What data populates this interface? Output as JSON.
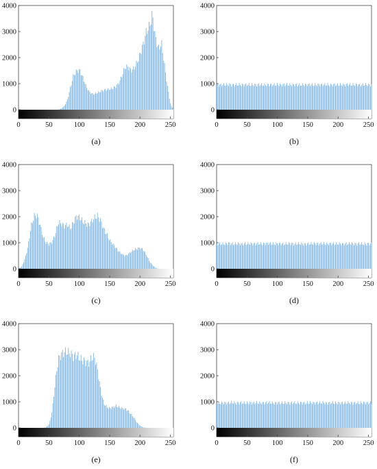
{
  "chart_data": [
    {
      "type": "bar",
      "caption": "(a)",
      "color": "#7fb6e2",
      "xlim": [
        0,
        255
      ],
      "ylim": [
        0,
        4000
      ],
      "xticks": [
        0,
        50,
        100,
        150,
        200,
        250
      ],
      "yticks": [
        0,
        1000,
        2000,
        3000,
        4000
      ],
      "x": [
        0,
        5,
        10,
        15,
        20,
        25,
        30,
        35,
        40,
        45,
        50,
        55,
        60,
        65,
        70,
        75,
        80,
        85,
        90,
        95,
        100,
        105,
        110,
        115,
        120,
        125,
        130,
        135,
        140,
        145,
        150,
        155,
        160,
        165,
        170,
        175,
        180,
        185,
        190,
        195,
        200,
        205,
        210,
        215,
        220,
        225,
        230,
        235,
        240,
        245,
        250,
        255
      ],
      "values": [
        0,
        0,
        0,
        0,
        0,
        0,
        0,
        0,
        0,
        0,
        0,
        0,
        0,
        0,
        50,
        150,
        400,
        900,
        1400,
        1580,
        1620,
        1350,
        1000,
        760,
        650,
        650,
        700,
        760,
        800,
        820,
        840,
        880,
        950,
        1100,
        1400,
        1750,
        1750,
        1600,
        1700,
        1950,
        2300,
        2700,
        3200,
        3400,
        3900,
        2900,
        2500,
        2700,
        1800,
        900,
        200,
        0
      ]
    },
    {
      "type": "bar",
      "caption": "(b)",
      "color": "#7fb6e2",
      "xlim": [
        0,
        255
      ],
      "ylim": [
        0,
        4000
      ],
      "xticks": [
        0,
        50,
        100,
        150,
        200,
        250
      ],
      "yticks": [
        0,
        1000,
        2000,
        3000,
        4000
      ],
      "x": [
        0,
        5,
        10,
        15,
        20,
        25,
        30,
        35,
        40,
        45,
        50,
        55,
        60,
        65,
        70,
        75,
        80,
        85,
        90,
        95,
        100,
        105,
        110,
        115,
        120,
        125,
        130,
        135,
        140,
        145,
        150,
        155,
        160,
        165,
        170,
        175,
        180,
        185,
        190,
        195,
        200,
        205,
        210,
        215,
        220,
        225,
        230,
        235,
        240,
        245,
        250,
        255
      ],
      "values": [
        1020,
        1010,
        1025,
        1015,
        1030,
        1010,
        1020,
        1025,
        1015,
        1020,
        1030,
        1010,
        1020,
        1015,
        1025,
        1020,
        1010,
        1030,
        1020,
        1015,
        1025,
        1010,
        1020,
        1030,
        1015,
        1020,
        1025,
        1010,
        1020,
        1015,
        1030,
        1020,
        1010,
        1025,
        1015,
        1020,
        1030,
        1010,
        1020,
        1025,
        1015,
        1020,
        1010,
        1030,
        1020,
        1015,
        1025,
        1010,
        1020,
        1030,
        1015,
        1020
      ]
    },
    {
      "type": "bar",
      "caption": "(c)",
      "color": "#7fb6e2",
      "xlim": [
        0,
        255
      ],
      "ylim": [
        0,
        4000
      ],
      "xticks": [
        0,
        50,
        100,
        150,
        200,
        250
      ],
      "yticks": [
        0,
        1000,
        2000,
        3000,
        4000
      ],
      "x": [
        0,
        5,
        10,
        15,
        20,
        25,
        30,
        35,
        40,
        45,
        50,
        55,
        60,
        65,
        70,
        75,
        80,
        85,
        90,
        95,
        100,
        105,
        110,
        115,
        120,
        125,
        130,
        135,
        140,
        145,
        150,
        155,
        160,
        165,
        170,
        175,
        180,
        185,
        190,
        195,
        200,
        205,
        210,
        215,
        220,
        225,
        230,
        235,
        240,
        245,
        250,
        255
      ],
      "values": [
        0,
        100,
        400,
        900,
        1700,
        2150,
        2200,
        1800,
        1300,
        1050,
        1000,
        1100,
        1400,
        1900,
        1850,
        1750,
        1800,
        1650,
        1900,
        2150,
        2100,
        1950,
        1850,
        1800,
        1950,
        2100,
        2150,
        1950,
        1600,
        1400,
        1150,
        1000,
        850,
        700,
        600,
        520,
        600,
        700,
        780,
        820,
        850,
        780,
        560,
        300,
        150,
        40,
        0,
        0,
        0,
        0,
        0,
        0
      ]
    },
    {
      "type": "bar",
      "caption": "(d)",
      "color": "#7fb6e2",
      "xlim": [
        0,
        255
      ],
      "ylim": [
        0,
        4000
      ],
      "xticks": [
        0,
        50,
        100,
        150,
        200,
        250
      ],
      "yticks": [
        0,
        1000,
        2000,
        3000,
        4000
      ],
      "x": [
        0,
        5,
        10,
        15,
        20,
        25,
        30,
        35,
        40,
        45,
        50,
        55,
        60,
        65,
        70,
        75,
        80,
        85,
        90,
        95,
        100,
        105,
        110,
        115,
        120,
        125,
        130,
        135,
        140,
        145,
        150,
        155,
        160,
        165,
        170,
        175,
        180,
        185,
        190,
        195,
        200,
        205,
        210,
        215,
        220,
        225,
        230,
        235,
        240,
        245,
        250,
        255
      ],
      "values": [
        1020,
        1030,
        1010,
        1025,
        1040,
        1015,
        1020,
        1030,
        1010,
        1025,
        1020,
        1035,
        1015,
        1020,
        1030,
        1010,
        1025,
        1040,
        1020,
        1015,
        1030,
        1020,
        1010,
        1025,
        1035,
        1020,
        1015,
        1030,
        1020,
        1010,
        1025,
        1020,
        1035,
        1015,
        1020,
        1030,
        1010,
        1025,
        1020,
        1015,
        1030,
        1020,
        1010,
        1025,
        1035,
        1020,
        1015,
        1030,
        1020,
        1010,
        1025,
        1020
      ]
    },
    {
      "type": "bar",
      "caption": "(e)",
      "color": "#7fb6e2",
      "xlim": [
        0,
        255
      ],
      "ylim": [
        0,
        4000
      ],
      "xticks": [
        0,
        50,
        100,
        150,
        200,
        250
      ],
      "yticks": [
        0,
        1000,
        2000,
        3000,
        4000
      ],
      "x": [
        0,
        5,
        10,
        15,
        20,
        25,
        30,
        35,
        40,
        45,
        50,
        55,
        60,
        65,
        70,
        75,
        80,
        85,
        90,
        95,
        100,
        105,
        110,
        115,
        120,
        125,
        130,
        135,
        140,
        145,
        150,
        155,
        160,
        165,
        170,
        175,
        180,
        185,
        190,
        195,
        200,
        205,
        210,
        215,
        220,
        225,
        230,
        235,
        240,
        245,
        250,
        255
      ],
      "values": [
        0,
        0,
        0,
        0,
        0,
        0,
        0,
        0,
        0,
        20,
        150,
        700,
        1900,
        2800,
        3000,
        3100,
        3100,
        3050,
        2900,
        3000,
        2850,
        2750,
        2700,
        2650,
        2850,
        2900,
        2300,
        1500,
        1000,
        850,
        800,
        850,
        900,
        850,
        800,
        780,
        700,
        550,
        400,
        200,
        80,
        20,
        0,
        0,
        0,
        0,
        0,
        0,
        0,
        0,
        0,
        0
      ]
    },
    {
      "type": "bar",
      "caption": "(f)",
      "color": "#7fb6e2",
      "xlim": [
        0,
        255
      ],
      "ylim": [
        0,
        4000
      ],
      "xticks": [
        0,
        50,
        100,
        150,
        200,
        250
      ],
      "yticks": [
        0,
        1000,
        2000,
        3000,
        4000
      ],
      "x": [
        0,
        5,
        10,
        15,
        20,
        25,
        30,
        35,
        40,
        45,
        50,
        55,
        60,
        65,
        70,
        75,
        80,
        85,
        90,
        95,
        100,
        105,
        110,
        115,
        120,
        125,
        130,
        135,
        140,
        145,
        150,
        155,
        160,
        165,
        170,
        175,
        180,
        185,
        190,
        195,
        200,
        205,
        210,
        215,
        220,
        225,
        230,
        235,
        240,
        245,
        250,
        255
      ],
      "values": [
        1020,
        1010,
        1030,
        1015,
        1025,
        1040,
        1010,
        1020,
        1030,
        1015,
        1020,
        1025,
        1010,
        1030,
        1020,
        1015,
        1025,
        1040,
        1020,
        1010,
        1030,
        1015,
        1020,
        1025,
        1010,
        1030,
        1020,
        1015,
        1025,
        1010,
        1020,
        1030,
        1015,
        1020,
        1025,
        1040,
        1010,
        1020,
        1030,
        1015,
        1020,
        1025,
        1010,
        1030,
        1020,
        1015,
        1025,
        1010,
        1020,
        1030,
        1015,
        1020
      ]
    }
  ]
}
